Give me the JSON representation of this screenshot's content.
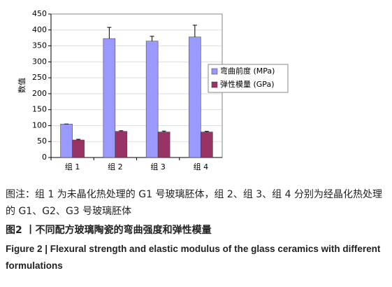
{
  "chart_data": {
    "type": "bar",
    "ylabel": "数值",
    "categories": [
      "组 1",
      "组 2",
      "组 3",
      "组 4"
    ],
    "series": [
      {
        "name": "弯曲前度 (MPa)",
        "color": "#9999ff",
        "values": [
          105,
          373,
          365,
          378
        ],
        "errors": [
          0,
          35,
          15,
          37
        ]
      },
      {
        "name": "弹性模量 (GPa)",
        "color": "#993366",
        "values": [
          55,
          82,
          80,
          80
        ],
        "errors": [
          2,
          2,
          3,
          2
        ]
      }
    ],
    "ylim": [
      0,
      450
    ],
    "yticks": [
      0,
      50,
      100,
      150,
      200,
      250,
      300,
      350,
      400,
      450
    ],
    "grid": true,
    "legend": "right"
  },
  "caption": {
    "note": "图注：组 1 为未晶化热处理的 G1 号玻璃胚体，组 2、组 3、组 4 分别为经晶化热处理的 G1、G2、G3 号玻璃胚体",
    "figure_cn": "图2 丨不同配方玻璃陶瓷的弯曲强度和弹性模量",
    "figure_en": "Figure 2 | Flexural strength and elastic modulus of the glass ceramics with different formulations"
  }
}
